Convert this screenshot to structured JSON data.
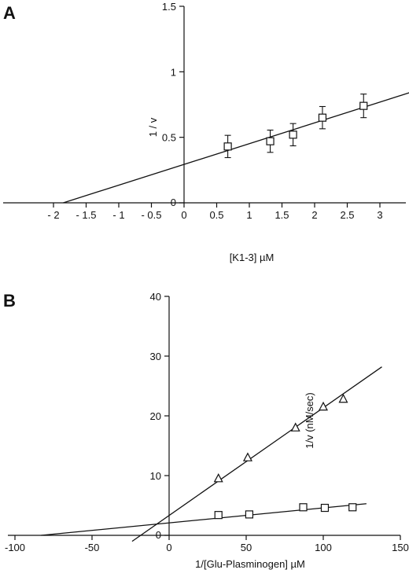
{
  "chart_data": [
    {
      "panel_label": "A",
      "type": "scatter",
      "xlabel": "[K1-3]  µM",
      "ylabel": "1 / v",
      "xlim": [
        -2.8,
        3.4
      ],
      "ylim": [
        0,
        1.5
      ],
      "x_ticks": [
        -2,
        -1.5,
        -1,
        -0.5,
        0,
        0.5,
        1,
        1.5,
        2,
        2.5,
        3
      ],
      "x_tick_labels": [
        "- 2",
        "- 1.5",
        "- 1",
        "- 0.5",
        "0",
        "0.5",
        "1",
        "1.5",
        "2",
        "2.5",
        "3"
      ],
      "y_ticks": [
        0,
        0.5,
        1,
        1.5
      ],
      "y_tick_labels": [
        "0",
        "0.5",
        "1",
        "1.5"
      ],
      "series": [
        {
          "marker": "square",
          "x": [
            0.67,
            1.32,
            1.67,
            2.12,
            2.75
          ],
          "y": [
            0.43,
            0.47,
            0.52,
            0.65,
            0.74
          ],
          "err": [
            0.085,
            0.085,
            0.085,
            0.085,
            0.09
          ]
        }
      ],
      "fit_lines": [
        {
          "x": [
            -1.85,
            3.45
          ],
          "y": [
            0.0,
            0.84
          ]
        }
      ]
    },
    {
      "panel_label": "B",
      "type": "scatter",
      "xlabel": "1/[Glu-Plasminogen] µM",
      "ylabel": "1/v (nM/sec)",
      "xlim": [
        -107,
        150
      ],
      "ylim": [
        0,
        40
      ],
      "x_ticks": [
        -100,
        -50,
        0,
        50,
        100,
        150
      ],
      "x_tick_labels": [
        "-100",
        "-50",
        "0",
        "50",
        "100",
        "150"
      ],
      "y_ticks": [
        0,
        10,
        20,
        30,
        40
      ],
      "y_tick_labels": [
        "0",
        "10",
        "20",
        "30",
        "40"
      ],
      "series": [
        {
          "marker": "triangle",
          "x": [
            32,
            51,
            82,
            100,
            113
          ],
          "y": [
            9.5,
            13.0,
            18.0,
            21.5,
            22.8
          ]
        },
        {
          "marker": "square",
          "x": [
            32,
            52,
            87,
            101,
            119
          ],
          "y": [
            3.4,
            3.5,
            4.7,
            4.6,
            4.7
          ]
        }
      ],
      "fit_lines": [
        {
          "x": [
            -24,
            138
          ],
          "y": [
            -1.0,
            28.2
          ]
        },
        {
          "x": [
            -83,
            128
          ],
          "y": [
            0.0,
            5.3
          ]
        }
      ]
    }
  ]
}
